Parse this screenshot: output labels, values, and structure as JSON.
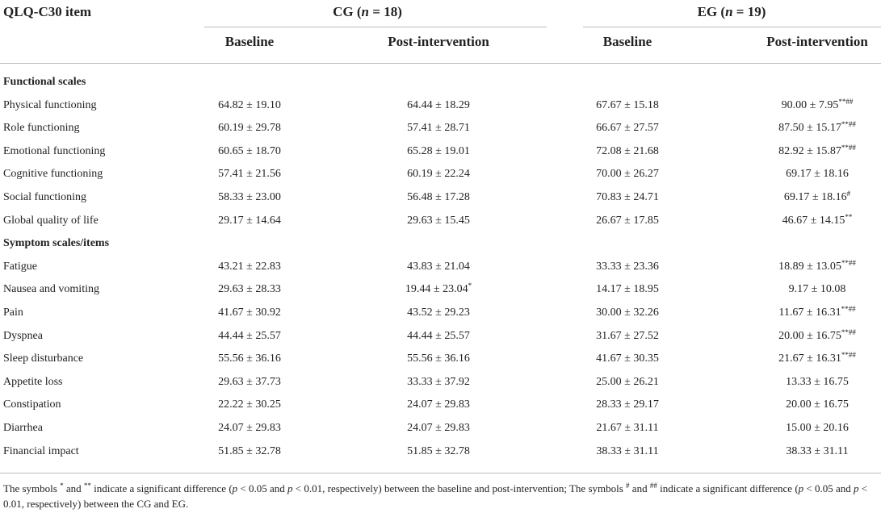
{
  "header": {
    "item_col": "QLQ-C30 item",
    "cg_prefix": "CG (",
    "cg_n": "n",
    "cg_suffix": " = 18)",
    "eg_prefix": "EG (",
    "eg_n": "n",
    "eg_suffix": " = 19)",
    "baseline": "Baseline",
    "post": "Post-intervention"
  },
  "sections": [
    {
      "title": "Functional scales",
      "rows": [
        {
          "item": "Physical functioning",
          "cg_base": "64.82 ± 19.10",
          "cg_post": "64.44 ± 18.29",
          "cg_post_mark": "",
          "eg_base": "67.67 ± 15.18",
          "eg_post": "90.00 ± 7.95",
          "eg_post_mark": "**##"
        },
        {
          "item": "Role functioning",
          "cg_base": "60.19 ± 29.78",
          "cg_post": "57.41 ± 28.71",
          "cg_post_mark": "",
          "eg_base": "66.67 ± 27.57",
          "eg_post": "87.50 ± 15.17",
          "eg_post_mark": "**##"
        },
        {
          "item": "Emotional functioning",
          "cg_base": "60.65 ± 18.70",
          "cg_post": "65.28 ± 19.01",
          "cg_post_mark": "",
          "eg_base": "72.08 ± 21.68",
          "eg_post": "82.92 ± 15.87",
          "eg_post_mark": "**##"
        },
        {
          "item": "Cognitive functioning",
          "cg_base": "57.41 ± 21.56",
          "cg_post": "60.19 ± 22.24",
          "cg_post_mark": "",
          "eg_base": "70.00 ± 26.27",
          "eg_post": "69.17 ± 18.16",
          "eg_post_mark": ""
        },
        {
          "item": "Social functioning",
          "cg_base": "58.33 ± 23.00",
          "cg_post": "56.48 ± 17.28",
          "cg_post_mark": "",
          "eg_base": "70.83 ± 24.71",
          "eg_post": "69.17 ± 18.16",
          "eg_post_mark": "#"
        },
        {
          "item": "Global quality of life",
          "cg_base": "29.17 ± 14.64",
          "cg_post": "29.63 ± 15.45",
          "cg_post_mark": "",
          "eg_base": "26.67 ± 17.85",
          "eg_post": "46.67 ± 14.15",
          "eg_post_mark": "**"
        }
      ]
    },
    {
      "title": "Symptom scales/items",
      "rows": [
        {
          "item": "Fatigue",
          "cg_base": "43.21 ± 22.83",
          "cg_post": "43.83 ± 21.04",
          "cg_post_mark": "",
          "eg_base": "33.33 ± 23.36",
          "eg_post": "18.89 ± 13.05",
          "eg_post_mark": "**##"
        },
        {
          "item": "Nausea and vomiting",
          "cg_base": "29.63 ± 28.33",
          "cg_post": "19.44 ± 23.04",
          "cg_post_mark": "*",
          "eg_base": "14.17 ± 18.95",
          "eg_post": "9.17 ± 10.08",
          "eg_post_mark": ""
        },
        {
          "item": "Pain",
          "cg_base": "41.67 ± 30.92",
          "cg_post": "43.52 ± 29.23",
          "cg_post_mark": "",
          "eg_base": "30.00 ± 32.26",
          "eg_post": "11.67 ± 16.31",
          "eg_post_mark": "**##"
        },
        {
          "item": "Dyspnea",
          "cg_base": "44.44 ± 25.57",
          "cg_post": "44.44 ± 25.57",
          "cg_post_mark": "",
          "eg_base": "31.67 ± 27.52",
          "eg_post": "20.00 ± 16.75",
          "eg_post_mark": "**##"
        },
        {
          "item": "Sleep disturbance",
          "cg_base": "55.56 ± 36.16",
          "cg_post": "55.56 ± 36.16",
          "cg_post_mark": "",
          "eg_base": "41.67 ± 30.35",
          "eg_post": "21.67 ± 16.31",
          "eg_post_mark": "**##"
        },
        {
          "item": "Appetite loss",
          "cg_base": "29.63 ± 37.73",
          "cg_post": "33.33 ± 37.92",
          "cg_post_mark": "",
          "eg_base": "25.00 ± 26.21",
          "eg_post": "13.33 ± 16.75",
          "eg_post_mark": ""
        },
        {
          "item": "Constipation",
          "cg_base": "22.22 ± 30.25",
          "cg_post": "24.07 ± 29.83",
          "cg_post_mark": "",
          "eg_base": "28.33 ± 29.17",
          "eg_post": "20.00 ± 16.75",
          "eg_post_mark": ""
        },
        {
          "item": "Diarrhea",
          "cg_base": "24.07 ± 29.83",
          "cg_post": "24.07 ± 29.83",
          "cg_post_mark": "",
          "eg_base": "21.67 ± 31.11",
          "eg_post": "15.00 ± 20.16",
          "eg_post_mark": ""
        },
        {
          "item": "Financial impact",
          "cg_base": "51.85 ± 32.78",
          "cg_post": "51.85 ± 32.78",
          "cg_post_mark": "",
          "eg_base": "38.33 ± 31.11",
          "eg_post": "38.33 ± 31.11",
          "eg_post_mark": ""
        }
      ]
    }
  ],
  "footnote": {
    "t1": "The symbols ",
    "s1": "*",
    "t2": " and ",
    "s2": "**",
    "t3": " indicate a significant difference (",
    "p1": "p",
    "t4": " < 0.05 and ",
    "p2": "p",
    "t5": " < 0.01, respectively) between the baseline and post-intervention; The symbols ",
    "s3": "#",
    "t6": " and ",
    "s4": "##",
    "t7": " indicate a significant difference (",
    "p3": "p",
    "t8": " < 0.05 and ",
    "p4": "p",
    "t9": " < 0.01, respectively) between the CG and EG."
  }
}
